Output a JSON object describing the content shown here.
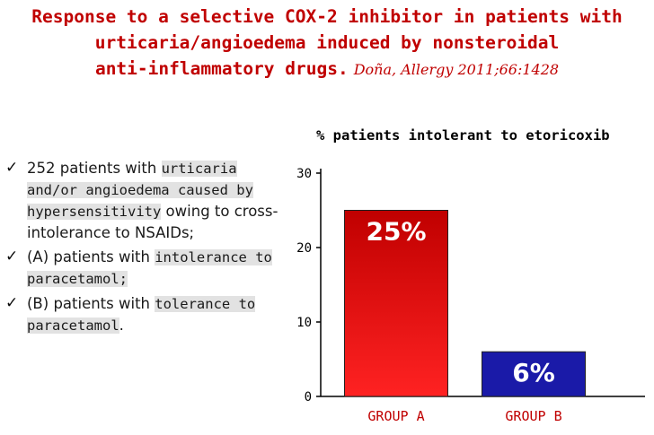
{
  "title": {
    "line1": "Response to a selective COX-2 inhibitor in patients with",
    "line2": "urticaria/angioedema induced by nonsteroidal",
    "line3": "anti-inflammatory drugs.",
    "citation": "Doña, Allergy 2011;66:1428"
  },
  "bullets": [
    {
      "pre": "252 patients with ",
      "highlight": "urticaria and/or angioedema caused by hypersensitivity",
      "post": " owing to cross-intolerance to NSAIDs;"
    },
    {
      "pre": "(A) patients with ",
      "highlight": "intolerance to paracetamol;",
      "post": ""
    },
    {
      "pre": "(B) patients with ",
      "highlight": "tolerance to paracetamol",
      "post": "."
    }
  ],
  "chart_data": {
    "type": "bar",
    "title": "% patients intolerant to etoricoxib",
    "categories": [
      "GROUP A",
      "GROUP B"
    ],
    "values": [
      25,
      6
    ],
    "labels": [
      "25%",
      "6%"
    ],
    "yticks": [
      0,
      10,
      20,
      30
    ],
    "ylim": [
      0,
      30
    ],
    "xlabel": "",
    "ylabel": "",
    "colors": [
      "#e01010",
      "#1a1aa8"
    ],
    "grid": false
  },
  "colors": {
    "title": "#c00000",
    "bar_a_top": "#c00000",
    "bar_a_bottom": "#ff2020",
    "bar_b": "#1a1aa8",
    "category_label": "#c00000"
  }
}
